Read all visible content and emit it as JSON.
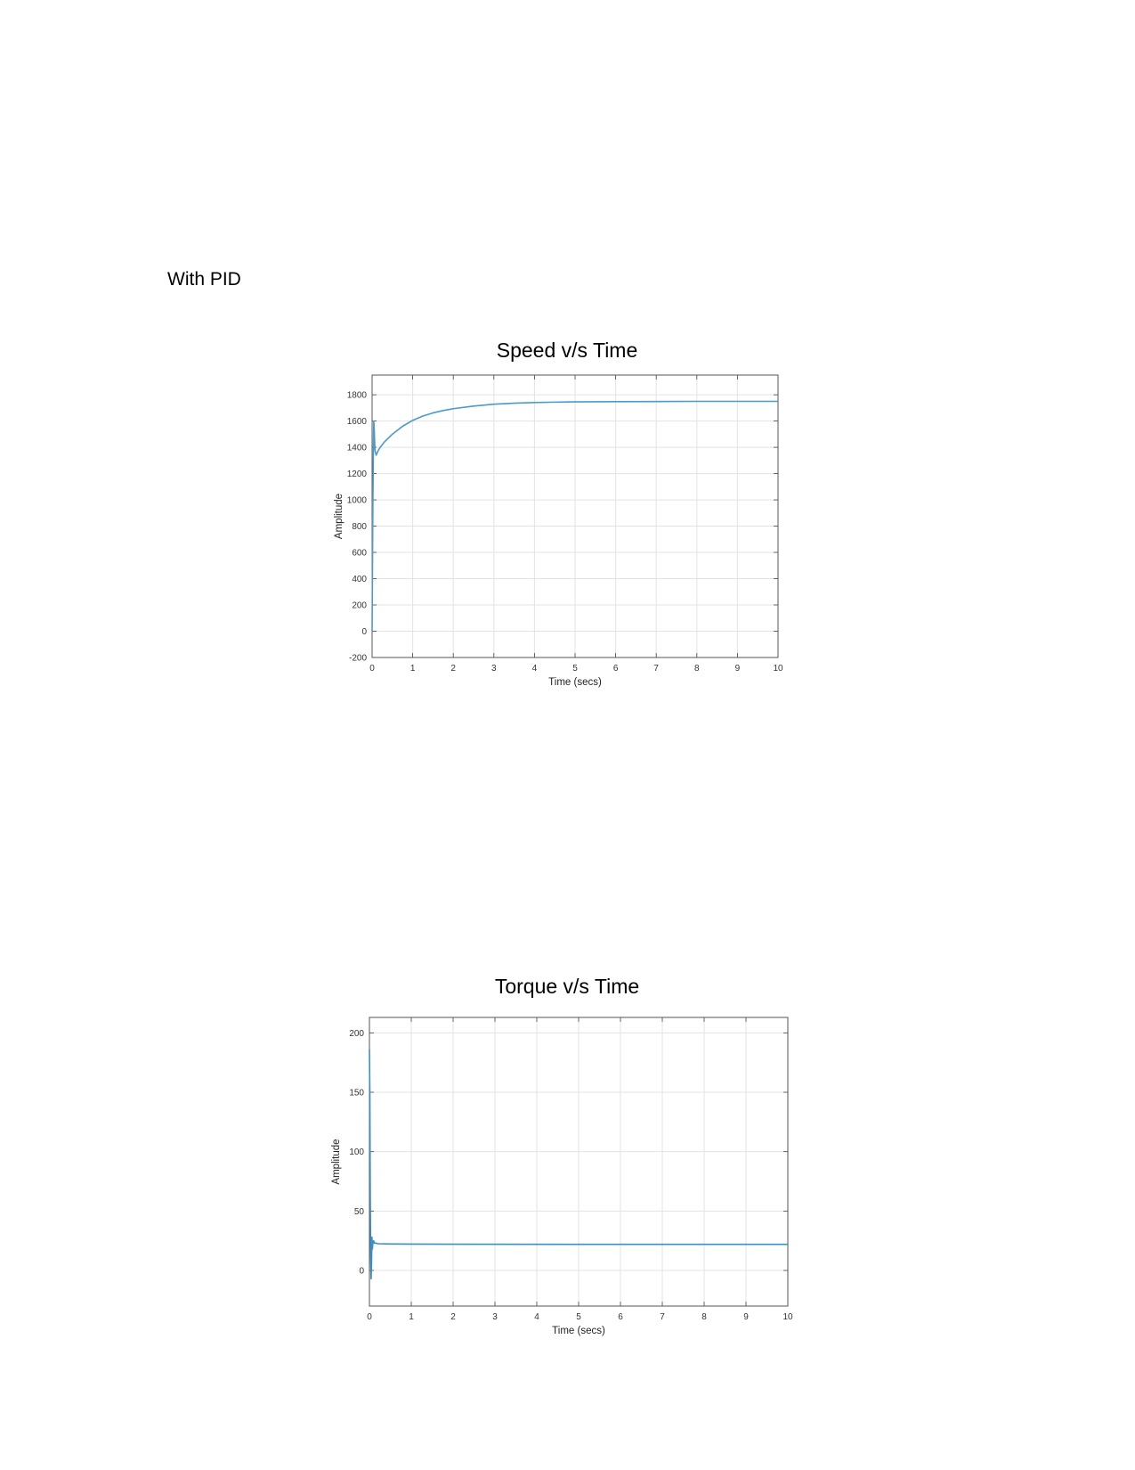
{
  "page": {
    "heading": "With PID"
  },
  "chart_data": [
    {
      "type": "line",
      "title": "Speed v/s Time",
      "xlabel": "Time (secs)",
      "ylabel": "Amplitude",
      "xlim": [
        0,
        10
      ],
      "ylim": [
        -200,
        1950
      ],
      "x_ticks": [
        0,
        1,
        2,
        3,
        4,
        5,
        6,
        7,
        8,
        9,
        10
      ],
      "y_ticks": [
        -200,
        0,
        200,
        400,
        600,
        800,
        1000,
        1200,
        1400,
        1600,
        1800
      ],
      "grid": true,
      "color": "#4a9acc",
      "series": [
        {
          "x": [
            0,
            0.02,
            0.04,
            0.05,
            0.07,
            0.1,
            0.15,
            0.2,
            0.3,
            0.5,
            0.75,
            1.0,
            1.25,
            1.5,
            1.75,
            2.0,
            2.5,
            3.0,
            3.5,
            4.0,
            4.5,
            5.0,
            6.0,
            7.0,
            8.0,
            9.0,
            10.0
          ],
          "values": [
            0,
            1000,
            1600,
            1560,
            1380,
            1340,
            1375,
            1400,
            1440,
            1500,
            1560,
            1605,
            1638,
            1662,
            1680,
            1694,
            1714,
            1728,
            1736,
            1741,
            1744,
            1746,
            1748,
            1749,
            1750,
            1750,
            1750
          ]
        }
      ]
    },
    {
      "type": "line",
      "title": "Torque v/s Time",
      "xlabel": "Time (secs)",
      "ylabel": "Amplitude",
      "xlim": [
        0,
        10
      ],
      "ylim": [
        -30,
        213
      ],
      "x_ticks": [
        0,
        1,
        2,
        3,
        4,
        5,
        6,
        7,
        8,
        9,
        10
      ],
      "y_ticks": [
        0,
        50,
        100,
        150,
        200
      ],
      "grid": true,
      "color": "#3b8fc2",
      "series": [
        {
          "x": [
            0,
            0.01,
            0.02,
            0.03,
            0.04,
            0.05,
            0.06,
            0.07,
            0.08,
            0.1,
            0.12,
            0.15,
            0.2,
            0.5,
            1,
            2,
            5,
            10
          ],
          "values": [
            186,
            150,
            60,
            10,
            -7,
            5,
            28,
            18,
            22,
            25,
            23,
            23,
            22.5,
            22.3,
            22.2,
            22.1,
            22,
            22
          ]
        }
      ]
    }
  ]
}
